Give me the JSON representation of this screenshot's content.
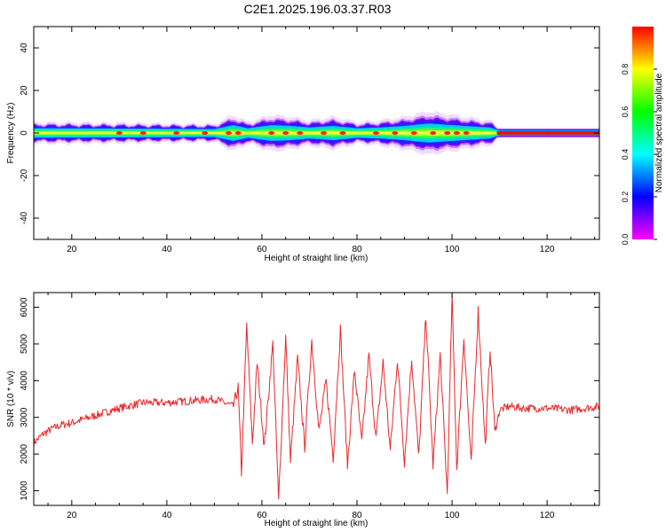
{
  "title": "C2E1.2025.196.03.37.R03",
  "chart_data": [
    {
      "type": "heatmap",
      "xlabel": "Height of straight line (km)",
      "ylabel": "Frequency (Hz)",
      "xlim": [
        12,
        131
      ],
      "ylim": [
        -50,
        50
      ],
      "xticks": [
        20,
        40,
        60,
        80,
        100,
        120
      ],
      "yticks": [
        40,
        20,
        0,
        -20,
        -40
      ],
      "colorbar": {
        "label": "Normalized spectral amplitude",
        "range": [
          0.0,
          1.0
        ],
        "ticks": [
          "0.0",
          "0.2",
          "0.4",
          "0.6",
          "0.8"
        ],
        "colors": [
          "#ff00ff",
          "#0000ff",
          "#00ffff",
          "#00ff00",
          "#ffff00",
          "#ff0000"
        ]
      },
      "band": {
        "center_freq_hz": 0,
        "halfwidth_hz": [
          [
            12,
            3.0
          ],
          [
            30,
            2.8
          ],
          [
            50,
            2.5
          ],
          [
            54,
            5.0
          ],
          [
            57,
            3.0
          ],
          [
            62,
            5.0
          ],
          [
            66,
            4.5
          ],
          [
            70,
            3.5
          ],
          [
            75,
            4.5
          ],
          [
            80,
            3.0
          ],
          [
            85,
            3.5
          ],
          [
            90,
            4.5
          ],
          [
            95,
            6.0
          ],
          [
            100,
            5.0
          ],
          [
            105,
            4.0
          ],
          [
            108,
            3.5
          ],
          [
            110,
            1.5
          ],
          [
            131,
            1.5
          ]
        ],
        "peak_heights_km": [
          30,
          35,
          42,
          48,
          53,
          55,
          62,
          65,
          68,
          73,
          77,
          84,
          88,
          92,
          96,
          99,
          101,
          103,
          110,
          115,
          120,
          126
        ]
      }
    },
    {
      "type": "line",
      "xlabel": "Height of straight line (km)",
      "ylabel": "SNR (10 * v/v)",
      "xlim": [
        12,
        131
      ],
      "ylim": [
        600,
        6400
      ],
      "xticks": [
        20,
        40,
        60,
        80,
        100,
        120
      ],
      "yticks": [
        1000,
        2000,
        3000,
        4000,
        5000,
        6000
      ],
      "color": "#e8282b",
      "series": [
        {
          "x": [
            12,
            14,
            16,
            18,
            20,
            25,
            30,
            35,
            40,
            45,
            50,
            52,
            54,
            55,
            55.7,
            56.8,
            58,
            59,
            60.5,
            62.3,
            63.5,
            65,
            66,
            67.5,
            69,
            70.5,
            72,
            73.5,
            75,
            76.5,
            78,
            79.5,
            81,
            82.5,
            84,
            85.5,
            87,
            88.5,
            90,
            91.5,
            93,
            94.5,
            96,
            97.5,
            99,
            100,
            101,
            102.5,
            104,
            105.5,
            107,
            108,
            109,
            110,
            112,
            115,
            120,
            125,
            131
          ],
          "y": [
            2300,
            2550,
            2700,
            2800,
            2850,
            3050,
            3250,
            3400,
            3400,
            3450,
            3500,
            3400,
            3300,
            3800,
            1500,
            5500,
            2300,
            4500,
            2200,
            5000,
            700,
            5200,
            1800,
            4600,
            2200,
            5100,
            2600,
            4000,
            1900,
            5400,
            1700,
            4300,
            2300,
            4700,
            2400,
            4500,
            2100,
            4600,
            1800,
            4600,
            1900,
            5800,
            1700,
            4700,
            900,
            6300,
            1600,
            5200,
            1700,
            5900,
            2200,
            4900,
            2600,
            3200,
            3300,
            3250,
            3250,
            3200,
            3300
          ]
        }
      ]
    }
  ]
}
